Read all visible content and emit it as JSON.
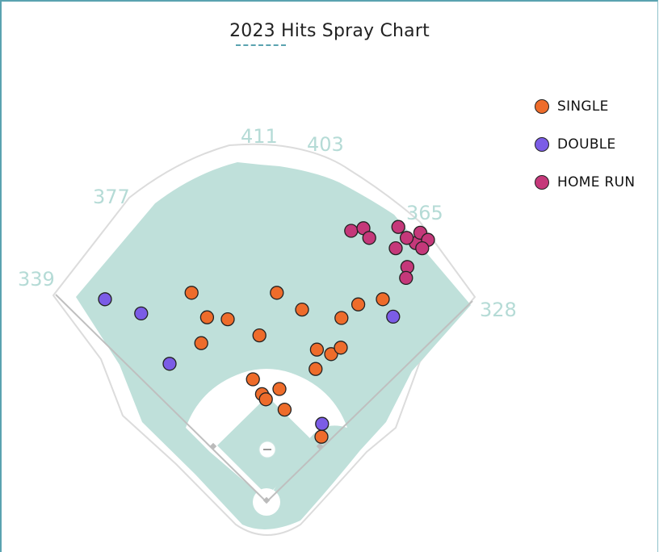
{
  "chart_data": {
    "type": "scatter",
    "title": "2023 Hits Spray Chart",
    "distance_labels": [
      "339",
      "377",
      "411",
      "403",
      "365",
      "328"
    ],
    "series": [
      {
        "name": "SINGLE",
        "color": "#ee6c2b",
        "points": [
          [
            -21,
            190
          ],
          [
            76,
            206
          ],
          [
            100,
            229
          ],
          [
            78,
            236
          ],
          [
            -11,
            258
          ],
          [
            115,
            239
          ],
          [
            55,
            298
          ],
          [
            116,
            285
          ],
          [
            142,
            306
          ],
          [
            180,
            314
          ],
          [
            -60,
            283
          ],
          [
            -92,
            286
          ],
          [
            -116,
            324
          ],
          [
            16,
            324
          ],
          [
            -101,
            246
          ],
          [
            -7,
            167
          ],
          [
            20,
            175
          ],
          [
            85,
            101
          ],
          [
            28,
            143
          ],
          [
            -1,
            159
          ]
        ]
      },
      {
        "name": "DOUBLE",
        "color": "#7b5ce6",
        "points": [
          [
            -194,
            292
          ],
          [
            -250,
            314
          ],
          [
            -150,
            214
          ],
          [
            86,
            121
          ],
          [
            196,
            287
          ]
        ]
      },
      {
        "name": "HOME RUN",
        "color": "#c5387a",
        "points": [
          [
            131,
            420
          ],
          [
            150,
            424
          ],
          [
            159,
            409
          ],
          [
            204,
            426
          ],
          [
            231,
            401
          ],
          [
            200,
            393
          ],
          [
            238,
            417
          ],
          [
            217,
            409
          ],
          [
            250,
            406
          ],
          [
            241,
            393
          ],
          [
            218,
            364
          ],
          [
            216,
            347
          ]
        ]
      }
    ]
  }
}
